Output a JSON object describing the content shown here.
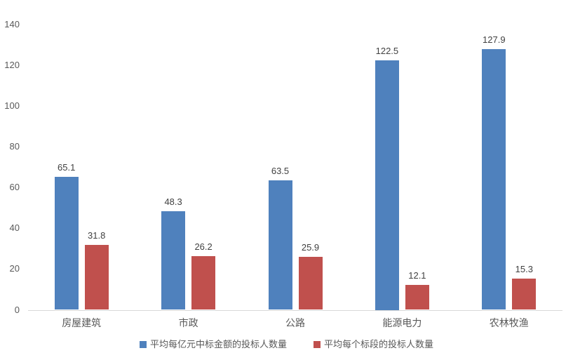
{
  "chart_data": {
    "type": "bar",
    "title": "",
    "xlabel": "",
    "ylabel": "",
    "categories": [
      "房屋建筑",
      "市政",
      "公路",
      "能源电力",
      "农林牧渔"
    ],
    "series": [
      {
        "name": "平均每亿元中标金额的投标人数量",
        "color": "#4F81BD",
        "values": [
          65.1,
          48.3,
          63.5,
          122.5,
          127.9
        ]
      },
      {
        "name": "平均每个标段的投标人数量",
        "color": "#C0504D",
        "values": [
          31.8,
          26.2,
          25.9,
          12.1,
          15.3
        ]
      }
    ],
    "data_labels": [
      [
        "65.1",
        "48.3",
        "63.5",
        "122.5",
        "127.9"
      ],
      [
        "31.8",
        "26.2",
        "25.9",
        "12.1",
        "15.3"
      ]
    ],
    "ylim": [
      0,
      140
    ],
    "yticks": [
      0,
      20,
      40,
      60,
      80,
      100,
      120,
      140
    ],
    "grid": false,
    "legend_position": "bottom"
  },
  "style": {
    "axis_line_color": "#d9d9d9",
    "tick_label_color": "#595959",
    "data_label_color": "#404040",
    "background": "#ffffff"
  }
}
